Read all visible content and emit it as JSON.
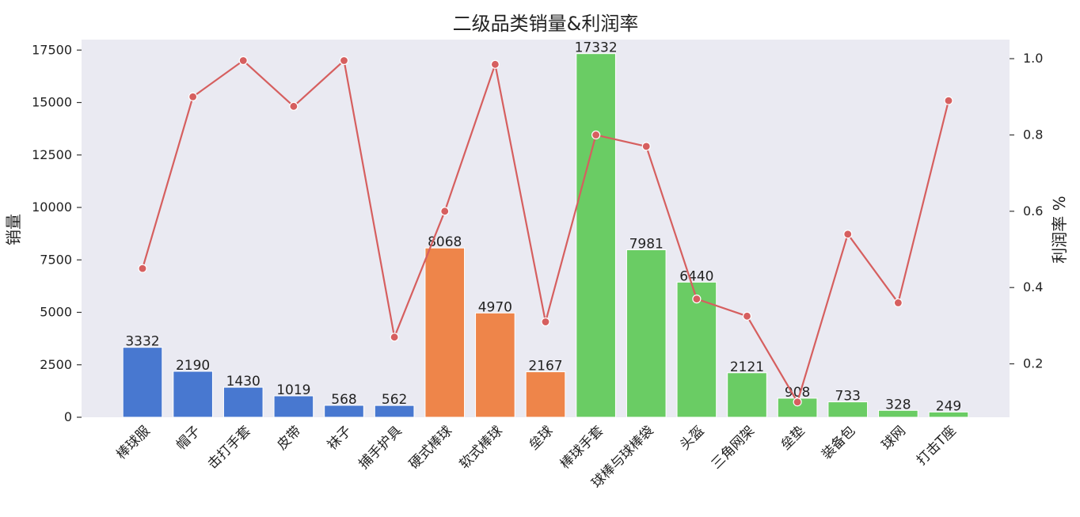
{
  "chart_data": {
    "type": "bar",
    "title": "二级品类销量&利润率",
    "ylabel": "销量",
    "y2label": "利润率 %",
    "ylim": [
      0,
      18000
    ],
    "y2lim": [
      0.06,
      1.05
    ],
    "yticks": [
      0,
      2500,
      5000,
      7500,
      10000,
      12500,
      15000,
      17500
    ],
    "y2ticks": [
      "0.2",
      "0.4",
      "0.6",
      "0.8",
      "1.0"
    ],
    "grid": false,
    "categories": [
      "棒球服",
      "帽子",
      "击打手套",
      "皮带",
      "袜子",
      "捕手护具",
      "硬式棒球",
      "软式棒球",
      "垒球",
      "棒球手套",
      "球棒与球棒袋",
      "头盔",
      "三角网架",
      "垒垫",
      "装备包",
      "球网",
      "打击T座"
    ],
    "series": [
      {
        "kind": "bar",
        "values": [
          3332,
          2190,
          1430,
          1019,
          568,
          562,
          8068,
          4970,
          2167,
          17332,
          7981,
          6440,
          2121,
          908,
          733,
          328,
          249
        ],
        "labels": [
          "3332",
          "2190",
          "1430",
          "1019",
          "568",
          "562",
          "8068",
          "4970",
          "2167",
          "17332",
          "7981",
          "6440",
          "2121",
          "908",
          "733",
          "328",
          "249"
        ],
        "groups": [
          0,
          0,
          0,
          0,
          0,
          0,
          1,
          1,
          1,
          2,
          2,
          2,
          2,
          2,
          2,
          2,
          2
        ]
      },
      {
        "kind": "line",
        "axis": "right",
        "values": [
          0.45,
          0.9,
          0.995,
          0.875,
          0.995,
          0.27,
          0.6,
          0.985,
          0.31,
          0.8,
          0.77,
          0.37,
          0.325,
          0.1,
          0.54,
          0.36,
          0.89
        ]
      }
    ],
    "colors": {
      "groups": [
        "#4878d0",
        "#ee854a",
        "#6acc64"
      ],
      "line": "#d65f5f",
      "background": "#eaeaf2"
    }
  }
}
